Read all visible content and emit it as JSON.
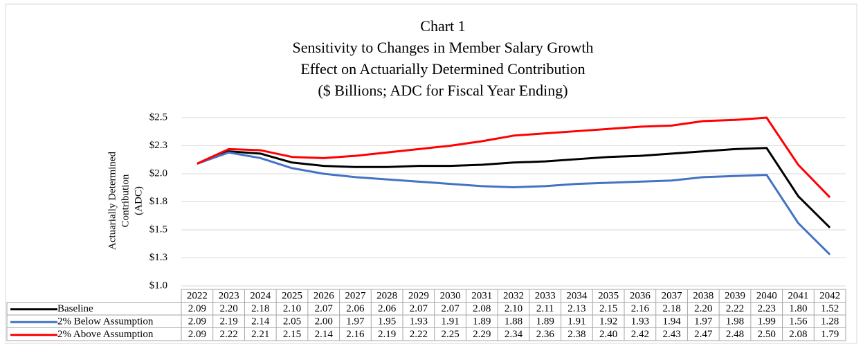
{
  "chart_data": {
    "type": "line",
    "title_lines": [
      "Chart 1",
      "Sensitivity to Changes in Member Salary Growth",
      "Effect on Actuarially  Determined Contribution",
      "($ Billions;  ADC for Fiscal Year Ending)"
    ],
    "y_label_lines": [
      "Actuarially Determined",
      "Contribution",
      "(ADC)"
    ],
    "categories": [
      "2022",
      "2023",
      "2024",
      "2025",
      "2026",
      "2027",
      "2028",
      "2029",
      "2030",
      "2031",
      "2032",
      "2033",
      "2034",
      "2035",
      "2036",
      "2037",
      "2038",
      "2039",
      "2040",
      "2041",
      "2042"
    ],
    "ylim": [
      1.0,
      2.5
    ],
    "yticks": [
      {
        "value": 1.0,
        "label": "$1.0"
      },
      {
        "value": 1.25,
        "label": "$1.3"
      },
      {
        "value": 1.5,
        "label": "$1.5"
      },
      {
        "value": 1.75,
        "label": "$1.8"
      },
      {
        "value": 2.0,
        "label": "$2.0"
      },
      {
        "value": 2.25,
        "label": "$2.3"
      },
      {
        "value": 2.5,
        "label": "$2.5"
      }
    ],
    "grid": true,
    "series": [
      {
        "name": "Baseline",
        "color": "#000000",
        "values": [
          2.09,
          2.2,
          2.18,
          2.1,
          2.07,
          2.06,
          2.06,
          2.07,
          2.07,
          2.08,
          2.1,
          2.11,
          2.13,
          2.15,
          2.16,
          2.18,
          2.2,
          2.22,
          2.23,
          1.8,
          1.52
        ],
        "value_labels": [
          "2.09",
          "2.20",
          "2.18",
          "2.10",
          "2.07",
          "2.06",
          "2.06",
          "2.07",
          "2.07",
          "2.08",
          "2.10",
          "2.11",
          "2.13",
          "2.15",
          "2.16",
          "2.18",
          "2.20",
          "2.22",
          "2.23",
          "1.80",
          "1.52"
        ]
      },
      {
        "name": "2% Below Assumption",
        "color": "#4472c4",
        "values": [
          2.09,
          2.19,
          2.14,
          2.05,
          2.0,
          1.97,
          1.95,
          1.93,
          1.91,
          1.89,
          1.88,
          1.89,
          1.91,
          1.92,
          1.93,
          1.94,
          1.97,
          1.98,
          1.99,
          1.56,
          1.28
        ],
        "value_labels": [
          "2.09",
          "2.19",
          "2.14",
          "2.05",
          "2.00",
          "1.97",
          "1.95",
          "1.93",
          "1.91",
          "1.89",
          "1.88",
          "1.89",
          "1.91",
          "1.92",
          "1.93",
          "1.94",
          "1.97",
          "1.98",
          "1.99",
          "1.56",
          "1.28"
        ]
      },
      {
        "name": "2% Above Assumption",
        "color": "#ff0000",
        "values": [
          2.09,
          2.22,
          2.21,
          2.15,
          2.14,
          2.16,
          2.19,
          2.22,
          2.25,
          2.29,
          2.34,
          2.36,
          2.38,
          2.4,
          2.42,
          2.43,
          2.47,
          2.48,
          2.5,
          2.08,
          1.79
        ],
        "value_labels": [
          "2.09",
          "2.22",
          "2.21",
          "2.15",
          "2.14",
          "2.16",
          "2.19",
          "2.22",
          "2.25",
          "2.29",
          "2.34",
          "2.36",
          "2.38",
          "2.40",
          "2.42",
          "2.43",
          "2.47",
          "2.48",
          "2.50",
          "2.08",
          "1.79"
        ]
      }
    ]
  }
}
